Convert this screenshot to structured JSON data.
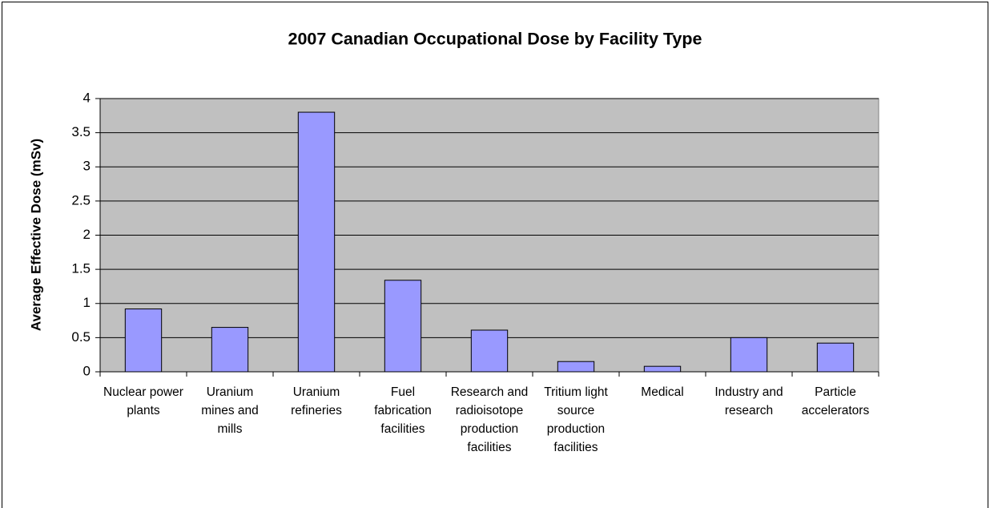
{
  "chart_data": {
    "type": "bar",
    "title": "2007 Canadian Occupational Dose by Facility Type",
    "y_label": "Average Effective Dose (mSv)",
    "categories": [
      "Nuclear power plants",
      "Uranium mines and mills",
      "Uranium refineries",
      "Fuel fabrication facilities",
      "Research and radioisotope production facilities",
      "Tritium light source production facilities",
      "Medical",
      "Industry and research",
      "Particle accelerators"
    ],
    "values": [
      0.92,
      0.65,
      3.8,
      1.34,
      0.61,
      0.15,
      0.08,
      0.5,
      0.42
    ],
    "color": "#9999ff",
    "ylim": [
      0,
      4
    ],
    "yticks": [
      0,
      0.5,
      1,
      1.5,
      2,
      2.5,
      3,
      3.5,
      4
    ],
    "grid": true
  }
}
